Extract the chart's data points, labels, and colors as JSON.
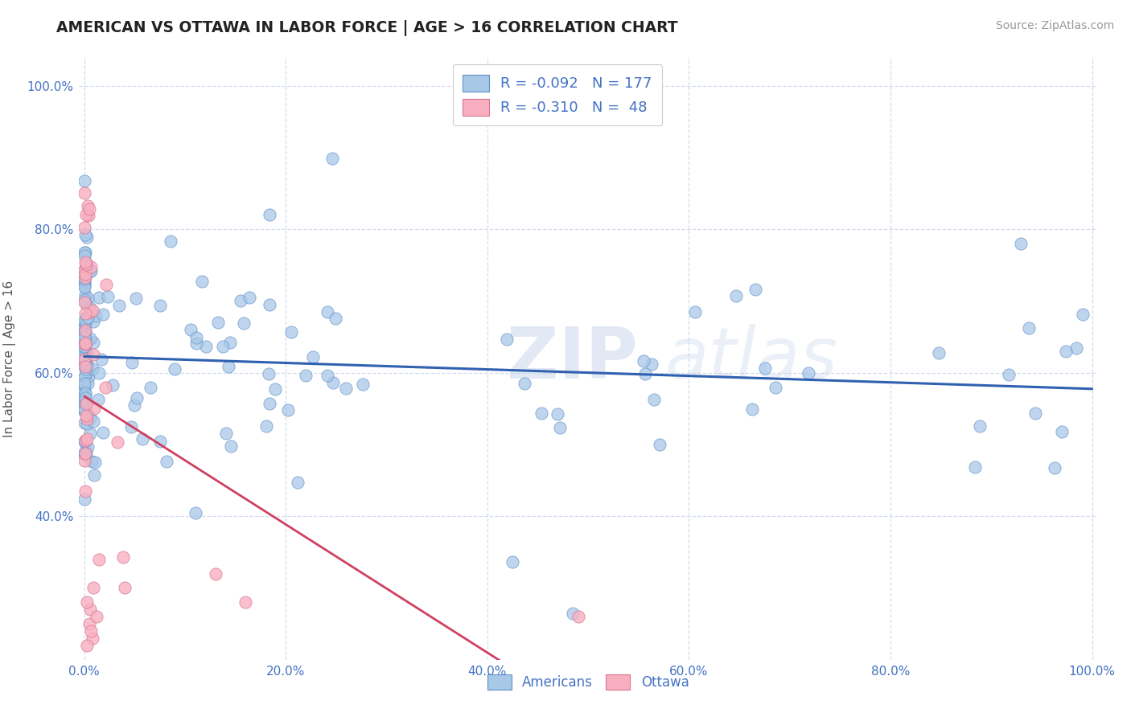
{
  "title": "AMERICAN VS OTTAWA IN LABOR FORCE | AGE > 16 CORRELATION CHART",
  "source": "Source: ZipAtlas.com",
  "ylabel": "In Labor Force | Age > 16",
  "watermark": "ZIPatlas",
  "xlim": [
    -0.005,
    1.005
  ],
  "ylim": [
    0.2,
    1.04
  ],
  "xtick_vals": [
    0.0,
    0.2,
    0.4,
    0.6,
    0.8,
    1.0
  ],
  "ytick_vals": [
    0.4,
    0.6,
    0.8,
    1.0
  ],
  "xtick_labels": [
    "0.0%",
    "20.0%",
    "40.0%",
    "60.0%",
    "80.0%",
    "100.0%"
  ],
  "ytick_labels": [
    "40.0%",
    "60.0%",
    "80.0%",
    "100.0%"
  ],
  "american_face_color": "#a8c8e8",
  "american_edge_color": "#6090c8",
  "ottawa_face_color": "#f8b0c0",
  "ottawa_edge_color": "#d87090",
  "american_line_color": "#3060b0",
  "ottawa_line_color": "#d04060",
  "r_american": -0.092,
  "n_american": 177,
  "r_ottawa": -0.31,
  "n_ottawa": 48,
  "title_color": "#222222",
  "axis_label_color": "#555555",
  "tick_color": "#4472c4",
  "background_color": "#ffffff",
  "grid_color": "#c8d4e8",
  "watermark_color": "#d0ddf0",
  "am_intercept": 0.635,
  "am_slope": -0.068,
  "ot_intercept": 0.67,
  "ot_slope": -0.85
}
